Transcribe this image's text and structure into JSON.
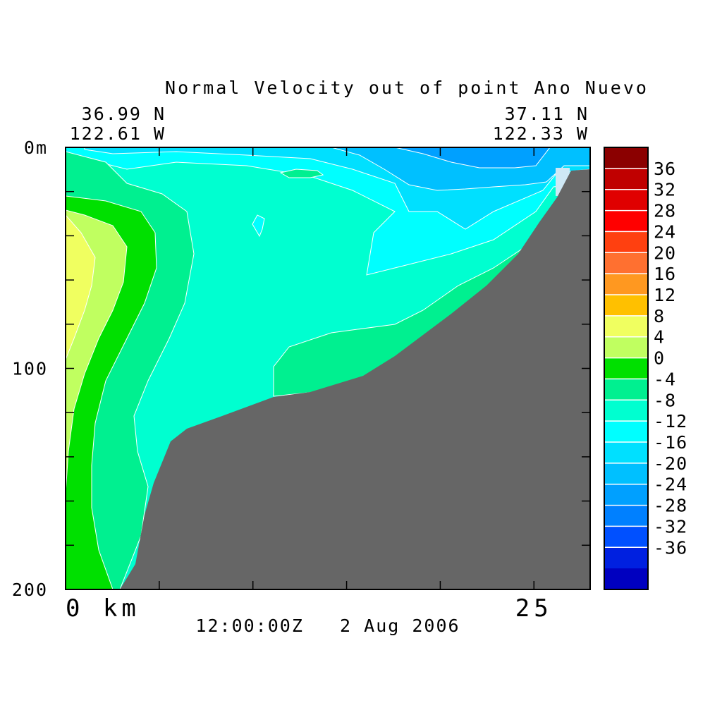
{
  "chart_data": {
    "type": "heatmap",
    "title": "Normal Velocity out of point Ano Nuevo",
    "left_coord": {
      "lat": "36.99 N",
      "lon": "122.61 W"
    },
    "right_coord": {
      "lat": "37.11 N",
      "lon": "122.33 W"
    },
    "timestamp": "12:00:00Z   2 Aug 2006",
    "x_axis": {
      "range": [
        0,
        28
      ],
      "ticks": [
        0,
        5,
        10,
        15,
        20,
        25
      ],
      "tick_labels": [
        {
          "value": 0,
          "text": "0 km"
        },
        {
          "value": 25,
          "text": "25"
        }
      ]
    },
    "y_axis": {
      "range": [
        0,
        200
      ],
      "inverted": true,
      "ticks": [
        0,
        20,
        40,
        60,
        80,
        100,
        120,
        140,
        160,
        180,
        200
      ],
      "tick_labels": [
        {
          "value": 0,
          "text": "0m"
        },
        {
          "value": 100,
          "text": "100"
        },
        {
          "value": 200,
          "text": "200"
        }
      ]
    },
    "colorbar": {
      "levels": [
        36,
        32,
        28,
        24,
        20,
        16,
        12,
        8,
        4,
        0,
        -4,
        -8,
        -12,
        -16,
        -20,
        -24,
        -28,
        -32,
        -36
      ],
      "labels": [
        "36",
        "32",
        "28",
        "24",
        "20",
        "16",
        "12",
        "8",
        "4",
        "0",
        "-4",
        "-8",
        "-12",
        "-16",
        "-20",
        "-24",
        "-28",
        "-32",
        "-36"
      ],
      "colors": [
        "#8b0000",
        "#c00000",
        "#e00000",
        "#ff0000",
        "#ff4010",
        "#ff7030",
        "#ff9820",
        "#ffc000",
        "#f0ff60",
        "#c0ff60",
        "#00e000",
        "#00f090",
        "#00ffd0",
        "#00ffff",
        "#00e0ff",
        "#00c0ff",
        "#00a0ff",
        "#0080ff",
        "#0050ff",
        "#0020e0",
        "#0000c0"
      ]
    },
    "regions": [
      {
        "name": "region-terrain",
        "value": "bottom",
        "color": "#666666"
      }
    ]
  }
}
